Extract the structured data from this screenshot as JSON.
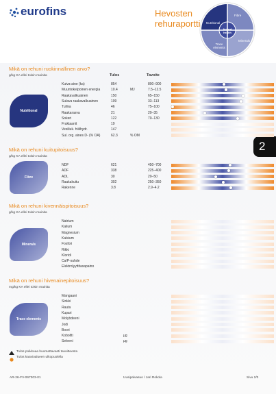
{
  "header": {
    "logo": "eurofins",
    "title": "Hevosten rehuraportti",
    "wheel": {
      "fibre": "Fibre",
      "nutritional": "Nutritional",
      "animal_health": "Animal health",
      "minerals": "Minerals",
      "trace": "Trace elements"
    }
  },
  "page_tab": "2",
  "sections": [
    {
      "title": "Mikä on rehuni ruokinnallinen arvo?",
      "unit": "g/kg KA ellei toisin mainita",
      "columns": [
        "Tulos",
        "Tavoite"
      ],
      "badge": "Nutritional",
      "rows": [
        {
          "label": "Kuiva-aine (ka)",
          "result": 854,
          "target": "800–900"
        },
        {
          "label": "Muuntokelpoinen energia",
          "result": 10.4,
          "unit": "MJ",
          "target": "7.5–12.5"
        },
        {
          "label": "Raakavalkuainen",
          "result": 150,
          "target": "65–150"
        },
        {
          "label": "Sulava raakavalkuainen",
          "result": 109,
          "target": "33–113"
        },
        {
          "label": "Tuhka",
          "result": 46,
          "target": "75–100"
        },
        {
          "label": "Raakarasva",
          "result": 21,
          "target": "20–35"
        },
        {
          "label": "Sokeri",
          "result": 122,
          "target": "70–130"
        },
        {
          "label": "Fruktaanit",
          "result": 19
        },
        {
          "label": "Vesiliuk. hiilihydr.",
          "result": 147
        },
        {
          "label": "Sul. org. aines D- (% OA)",
          "result": 62.3,
          "unit": "% OM"
        }
      ]
    },
    {
      "title": "Mikä on rehuni kuitupitoisuus?",
      "unit": "g/kg KA ellei toisin mainita",
      "badge": "Fibre",
      "rows": [
        {
          "label": "NDF",
          "result": 621,
          "target": "450–700"
        },
        {
          "label": "ADF",
          "result": 338,
          "target": "225–400"
        },
        {
          "label": "ADL",
          "result": 30,
          "target": "20–50"
        },
        {
          "label": "Raakakuitu",
          "result": 302,
          "target": "250–350"
        },
        {
          "label": "Rakenne",
          "result": 3.8,
          "target": "2.9–4.2"
        }
      ]
    },
    {
      "title": "Mikä on rehuni kivennäispitoisuus?",
      "unit": "g/kg KA ellei toisin mainita",
      "badge": "Minerals",
      "rows": [
        {
          "label": "Natrium"
        },
        {
          "label": "Kalium"
        },
        {
          "label": "Magnesium"
        },
        {
          "label": "Kalsium"
        },
        {
          "label": "Fosfori"
        },
        {
          "label": "Rikki"
        },
        {
          "label": "Kloridi"
        },
        {
          "label": "Ca/P-suhde"
        },
        {
          "label": "Elektrolyyttitasapaino"
        }
      ]
    },
    {
      "title": "Mikä on rehuni hivenainepitoisuus?",
      "unit": "mg/kg KA ellei toisin mainita",
      "badge": "Trace elements",
      "rows": [
        {
          "label": "Mangaani"
        },
        {
          "label": "Sinkki"
        },
        {
          "label": "Rauta"
        },
        {
          "label": "Kupari"
        },
        {
          "label": "Molybdeeni"
        },
        {
          "label": "Jodi"
        },
        {
          "label": "Boori"
        },
        {
          "label": "Koboltti",
          "unit": "µg"
        },
        {
          "label": "Seleeni",
          "unit": "µg"
        }
      ]
    }
  ],
  "legend": [
    "Tulos poikkeaa huomattavasti tavoitteesta",
    "Tulos kaavioalueen ulkopuolella"
  ],
  "footer": {
    "code": "AR-26-FV-067303-01",
    "author": "Uusipalvasuo / Jari Rokola",
    "page": "Sivu 2/3"
  }
}
